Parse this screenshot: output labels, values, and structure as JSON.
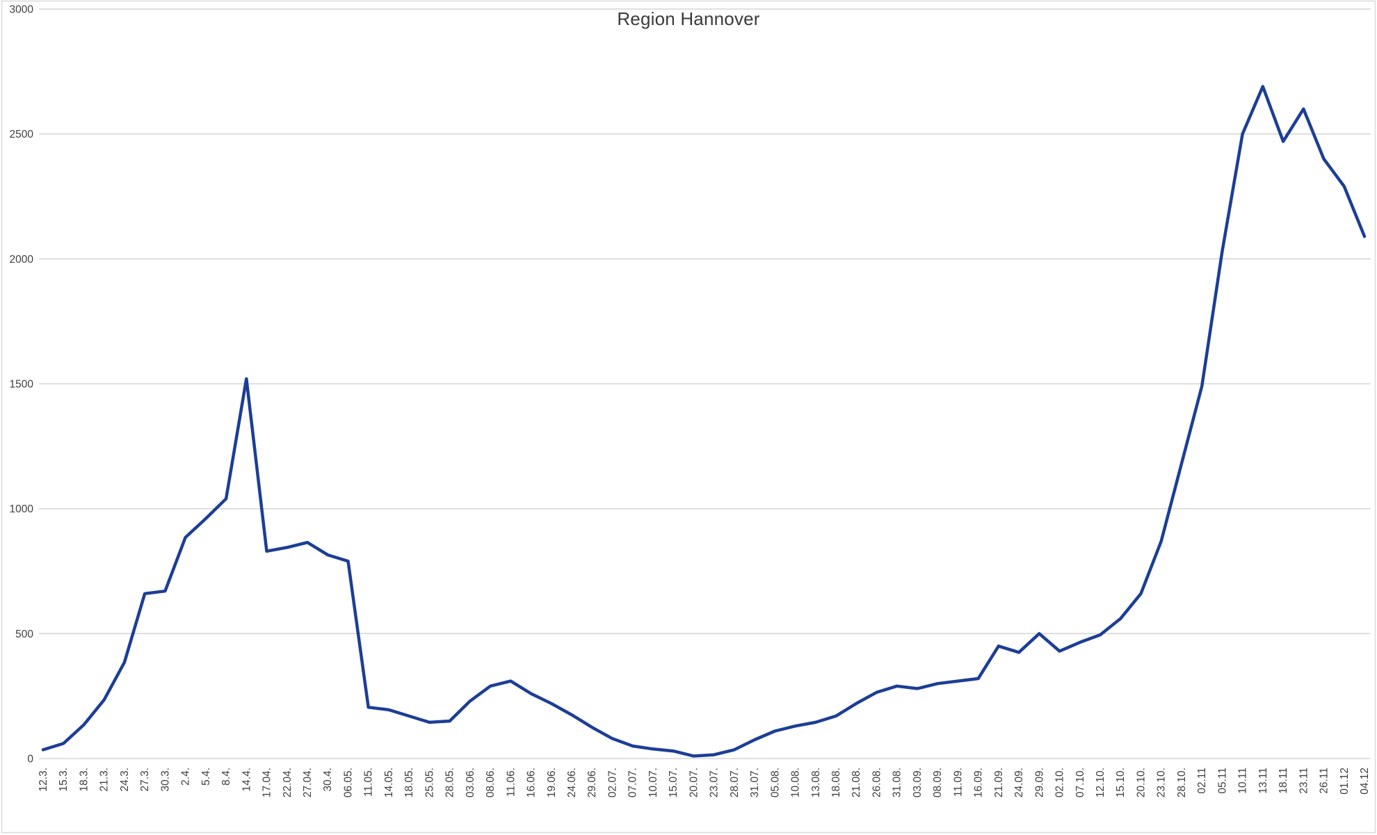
{
  "chart_data": {
    "type": "line",
    "title": "Region Hannover",
    "categories": [
      "12.3.",
      "15.3.",
      "18.3.",
      "21.3.",
      "24.3.",
      "27.3.",
      "30.3.",
      "2.4.",
      "5.4.",
      "8.4.",
      "14.4.",
      "17.04.",
      "22.04.",
      "27.04.",
      "30.4.",
      "06.05.",
      "11.05.",
      "14.05.",
      "18.05.",
      "25.05.",
      "28.05.",
      "03.06.",
      "08.06.",
      "11.06.",
      "16.06.",
      "19.06.",
      "24.06.",
      "29.06.",
      "02.07.",
      "07.07.",
      "10.07.",
      "15.07.",
      "20.07.",
      "23.07.",
      "28.07.",
      "31.07.",
      "05.08.",
      "10.08.",
      "13.08.",
      "18.08.",
      "21.08.",
      "26.08.",
      "31.08.",
      "03.09.",
      "08.09.",
      "11.09.",
      "16.09.",
      "21.09.",
      "24.09.",
      "29.09.",
      "02.10.",
      "07.10.",
      "12.10.",
      "15.10.",
      "20.10.",
      "23.10.",
      "28.10.",
      "02.11",
      "05.11",
      "10.11",
      "13.11",
      "18.11",
      "23.11",
      "26.11",
      "01.12",
      "04.12"
    ],
    "series": [
      {
        "name": "Region Hannover",
        "values": [
          35,
          60,
          135,
          235,
          385,
          660,
          670,
          885,
          960,
          1040,
          1520,
          830,
          845,
          865,
          815,
          790,
          205,
          195,
          170,
          145,
          150,
          230,
          290,
          310,
          260,
          220,
          175,
          125,
          80,
          50,
          38,
          30,
          10,
          15,
          35,
          75,
          110,
          130,
          145,
          170,
          220,
          265,
          290,
          280,
          300,
          310,
          320,
          450,
          425,
          500,
          430,
          465,
          495,
          560,
          660,
          870,
          1180,
          1490,
          2030,
          2500,
          2690,
          2470,
          2600,
          2400,
          2290,
          2090
        ]
      }
    ],
    "xlabel": "",
    "ylabel": "",
    "ylim": [
      0,
      3000
    ],
    "ytick_step": 500,
    "x_tick_rotation": -90,
    "grid": "horizontal",
    "legend": "none",
    "colors": {
      "line": "#1c3e95",
      "gridline": "#d6d6d6",
      "axis_text": "#3f3f3f",
      "title_text": "#3a3a3a",
      "border": "#d9d9d9",
      "background": "#ffffff"
    }
  }
}
